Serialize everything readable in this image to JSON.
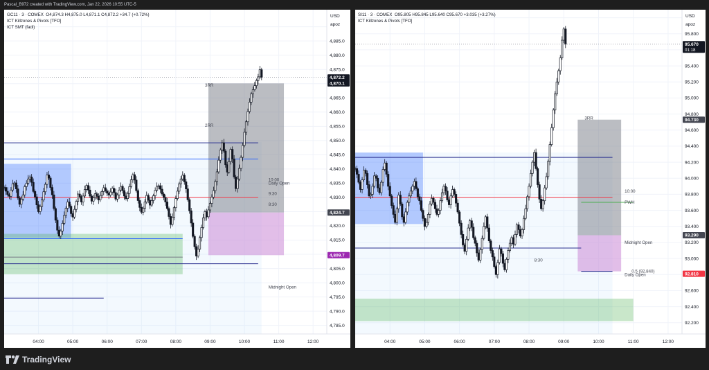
{
  "header": {
    "text": "Pascal_B972 created with TradingView.com, Jan 22, 2026 10:55 UTC-5"
  },
  "footer": {
    "brand": "TradingView"
  },
  "colors": {
    "up": "#26a69a",
    "down": "#ef5350",
    "candle": "#131722",
    "blue_box": "#2962ff",
    "green_box": "#4caf50",
    "purple_box": "#ce93d8",
    "gray_box": "#787b86",
    "red_line": "#f23645",
    "navy_line": "#2a2e8f",
    "price_tag": "#131722",
    "price_tag_red": "#f23645"
  },
  "chart_data": [
    {
      "type": "candlestick",
      "symbol_line": "GC11 · 3 · COMEX",
      "ohlc_text": "O4,874.3  H4,875.0  L4,871.1  C4,872.2  +34.7 (+0.72%)",
      "indicators": [
        "ICT Killzones & Pivots [TFO]",
        "ICT SMT (fadi)"
      ],
      "currency": "USD",
      "scale_mode": "apoz",
      "ylim": [
        4782,
        4896
      ],
      "y_ticks": [
        4785,
        4790,
        4795,
        4800,
        4805,
        4810,
        4815,
        4820,
        4825,
        4830,
        4835,
        4840,
        4845,
        4850,
        4855,
        4860,
        4865,
        4870,
        4875,
        4880,
        4885,
        4890
      ],
      "y_tick_labels": [
        "4,785.0",
        "4,790.0",
        "4,795.0",
        "4,800.0",
        "4,805.0",
        "4,810.0",
        "4,815.0",
        "4,820.0",
        "4,825.0",
        "4,830.0",
        "4,835.0",
        "4,840.0",
        "4,845.0",
        "4,850.0",
        "4,855.0",
        "4,860.0",
        "4,865.0",
        "4,870.0",
        "4,875.0",
        "4,880.0",
        "4,885.0",
        "4,890.0"
      ],
      "x_ticks": [
        "04:00",
        "05:00",
        "06:00",
        "07:00",
        "08:00",
        "09:00",
        "10:00",
        "11:00",
        "12:00"
      ],
      "price_tags": [
        {
          "value": 4872.2,
          "label": "4,872.2",
          "sub": "01:18",
          "color": "#131722"
        },
        {
          "value": 4870.1,
          "label": "4,870.1",
          "color": "#131722"
        },
        {
          "value": 4824.7,
          "label": "4,824.7",
          "color": "#434651"
        },
        {
          "value": 4809.7,
          "label": "4,809.7",
          "color": "#9c27b0"
        }
      ],
      "annotations": [
        {
          "text": "3RR",
          "hour": 8.85,
          "value": 4869.5
        },
        {
          "text": "2RR",
          "hour": 8.85,
          "value": 4855.3
        },
        {
          "text": "10:00",
          "hour": 10.7,
          "value": 4836.2
        },
        {
          "text": "Daily Open",
          "hour": 10.7,
          "value": 4835.0
        },
        {
          "text": "9:30",
          "hour": 10.7,
          "value": 4831.3
        },
        {
          "text": "8:30",
          "hour": 10.7,
          "value": 4827.5
        },
        {
          "text": "Midnight Open",
          "hour": 10.7,
          "value": 4798.5
        }
      ],
      "levels": [
        {
          "value": 4849.2,
          "from": 3.0,
          "to": 10.4,
          "color": "#2a2e8f"
        },
        {
          "value": 4843.5,
          "from": 3.0,
          "to": 10.4,
          "color": "#2962ff"
        },
        {
          "value": 4830.0,
          "from": 3.0,
          "to": 10.4,
          "color": "#f23645"
        },
        {
          "value": 4815.5,
          "from": 3.0,
          "to": 8.2,
          "color": "#2962ff"
        },
        {
          "value": 4809.0,
          "from": 3.0,
          "to": 8.2,
          "color": "#787b86"
        },
        {
          "value": 4806.7,
          "from": 3.0,
          "to": 10.4,
          "color": "#2a2e8f"
        },
        {
          "value": 4794.6,
          "from": 3.0,
          "to": 5.9,
          "color": "#2a2e8f"
        }
      ],
      "zones": [
        {
          "name": "asia",
          "from": 3.0,
          "to": 4.95,
          "low": 4815.8,
          "high": 4841.8,
          "color": "#2962ff"
        },
        {
          "name": "london",
          "from": 3.0,
          "to": 8.2,
          "low": 4803.0,
          "high": 4817.2,
          "color": "#4caf50"
        },
        {
          "name": "session",
          "from": 3.0,
          "to": 10.5,
          "low": 4782.0,
          "high": 4849.5,
          "color": "#bbdefb"
        },
        {
          "name": "target",
          "from": 8.95,
          "to": 11.15,
          "low": 4824.7,
          "high": 4870.1,
          "color": "#787b86"
        },
        {
          "name": "stop",
          "from": 8.95,
          "to": 11.15,
          "low": 4809.7,
          "high": 4824.7,
          "color": "#ce93d8"
        }
      ],
      "series": {
        "start_hour": 3.0,
        "step_hour": 0.05,
        "close": [
          4833.5,
          4832.2,
          4831.0,
          4830.4,
          4832.6,
          4834.8,
          4835.1,
          4833.0,
          4829.8,
          4827.6,
          4829.4,
          4830.9,
          4833.8,
          4835.0,
          4836.5,
          4837.2,
          4835.3,
          4832.1,
          4830.2,
          4827.4,
          4825.0,
          4826.8,
          4829.1,
          4832.0,
          4834.6,
          4837.9,
          4836.8,
          4833.5,
          4830.9,
          4826.1,
          4822.0,
          4818.5,
          4816.4,
          4818.2,
          4820.9,
          4823.7,
          4826.2,
          4828.4,
          4826.9,
          4824.3,
          4823.1,
          4825.8,
          4828.6,
          4831.2,
          4830.3,
          4828.4,
          4830.5,
          4832.8,
          4834.2,
          4832.6,
          4830.5,
          4828.7,
          4829.9,
          4831.3,
          4830.4,
          4829.1,
          4830.7,
          4832.1,
          4833.4,
          4832.3,
          4831.5,
          4830.8,
          4831.9,
          4833.2,
          4831.7,
          4829.4,
          4830.9,
          4832.6,
          4833.9,
          4832.4,
          4830.5,
          4829.6,
          4831.4,
          4833.8,
          4836.2,
          4838.0,
          4836.1,
          4832.4,
          4828.9,
          4826.5,
          4824.8,
          4826.2,
          4828.4,
          4830.7,
          4829.0,
          4827.3,
          4828.9,
          4830.6,
          4832.5,
          4833.9,
          4834.1,
          4832.9,
          4831.2,
          4830.0,
          4828.4,
          4826.1,
          4823.3,
          4820.5,
          4823.0,
          4826.4,
          4829.6,
          4832.2,
          4834.8,
          4836.5,
          4837.8,
          4835.5,
          4833.0,
          4829.2,
          4825.3,
          4821.0,
          4816.3,
          4812.7,
          4809.4,
          4811.8,
          4815.9,
          4819.4,
          4822.8,
          4825.0,
          4823.2,
          4825.6,
          4827.9,
          4830.1,
          4832.4,
          4835.6,
          4839.0,
          4843.1,
          4846.7,
          4849.2,
          4846.3,
          4841.5,
          4838.9,
          4842.6,
          4846.9,
          4843.5,
          4837.2,
          4833.1,
          4836.5,
          4840.2,
          4844.1,
          4848.3,
          4852.9,
          4856.6,
          4860.2,
          4863.5,
          4866.4,
          4867.9,
          4869.3,
          4871.1,
          4872.4,
          4874.9,
          4872.2
        ]
      }
    },
    {
      "type": "candlestick",
      "symbol_line": "SI11 · 3 · COMEX",
      "ohlc_text": "O95.805  H95.845  L95.640  C95.670  +3.035 (+3.27%)",
      "indicators": [
        "ICT Killzones & Pivots [TFO]"
      ],
      "currency": "USD",
      "scale_mode": "apoz",
      "ylim": [
        92.06,
        96.1
      ],
      "y_ticks": [
        92.2,
        92.4,
        92.6,
        92.8,
        93.0,
        93.2,
        93.4,
        93.6,
        93.8,
        94.0,
        94.2,
        94.4,
        94.6,
        94.8,
        95.0,
        95.2,
        95.4,
        95.6,
        95.8,
        96.0
      ],
      "y_tick_labels": [
        "92.200",
        "92.400",
        "92.600",
        "92.800",
        "93.000",
        "93.200",
        "93.400",
        "93.600",
        "93.800",
        "94.000",
        "94.200",
        "94.400",
        "94.600",
        "94.800",
        "95.000",
        "95.200",
        "95.400",
        "95.600",
        "95.800",
        "96.000"
      ],
      "x_ticks": [
        "04:00",
        "05:00",
        "06:00",
        "07:00",
        "08:00",
        "09:00",
        "10:00",
        "11:00",
        "12:00"
      ],
      "price_tags": [
        {
          "value": 95.67,
          "label": "95.670",
          "sub": "01:18",
          "color": "#131722"
        },
        {
          "value": 94.73,
          "label": "94.730",
          "color": "#434651"
        },
        {
          "value": 93.29,
          "label": "93.290",
          "color": "#434651"
        },
        {
          "value": 92.81,
          "label": "92.810",
          "color": "#f23645"
        }
      ],
      "annotations": [
        {
          "text": "3RR",
          "hour": 9.6,
          "value": 94.75
        },
        {
          "text": "10:00",
          "hour": 10.75,
          "value": 93.84
        },
        {
          "text": "PWH",
          "hour": 10.75,
          "value": 93.7
        },
        {
          "text": "Midnight Open",
          "hour": 10.75,
          "value": 93.2
        },
        {
          "text": "8:30",
          "hour": 8.15,
          "value": 92.98
        },
        {
          "text": "0.5 (92.840)",
          "hour": 10.95,
          "value": 92.84
        },
        {
          "text": "Daily Open",
          "hour": 10.75,
          "value": 92.8
        }
      ],
      "levels": [
        {
          "value": 94.26,
          "from": 3.0,
          "to": 10.4,
          "color": "#2a2e8f"
        },
        {
          "value": 93.76,
          "from": 3.0,
          "to": 10.4,
          "color": "#f23645"
        },
        {
          "value": 93.7,
          "from": 9.5,
          "to": 11.0,
          "color": "#4caf50"
        },
        {
          "value": 93.13,
          "from": 3.0,
          "to": 9.5,
          "color": "#2a2e8f"
        },
        {
          "value": 92.84,
          "from": 9.5,
          "to": 10.4,
          "color": "#2a2e8f"
        }
      ],
      "zones": [
        {
          "name": "asia",
          "from": 3.0,
          "to": 4.95,
          "low": 93.43,
          "high": 94.32,
          "color": "#2962ff"
        },
        {
          "name": "london",
          "from": 3.0,
          "to": 11.0,
          "low": 92.22,
          "high": 92.5,
          "color": "#4caf50"
        },
        {
          "name": "session",
          "from": 3.0,
          "to": 10.4,
          "low": 92.06,
          "high": 94.32,
          "color": "#bbdefb"
        },
        {
          "name": "target",
          "from": 9.4,
          "to": 10.65,
          "low": 93.29,
          "high": 94.73,
          "color": "#787b86"
        },
        {
          "name": "stop",
          "from": 9.4,
          "to": 10.65,
          "low": 92.84,
          "high": 93.29,
          "color": "#ce93d8"
        }
      ],
      "series": {
        "start_hour": 3.0,
        "step_hour": 0.05,
        "close": [
          94.12,
          94.05,
          93.95,
          93.86,
          93.98,
          94.1,
          94.06,
          93.92,
          93.78,
          93.8,
          93.9,
          94.03,
          94.0,
          93.88,
          93.82,
          93.95,
          94.11,
          94.19,
          94.05,
          93.9,
          93.78,
          93.66,
          93.55,
          93.45,
          93.62,
          93.79,
          93.68,
          93.52,
          93.45,
          93.58,
          93.7,
          93.78,
          93.84,
          93.9,
          93.96,
          93.87,
          93.77,
          93.72,
          93.6,
          93.5,
          93.4,
          93.45,
          93.55,
          93.68,
          93.75,
          93.7,
          93.62,
          93.55,
          93.6,
          93.72,
          93.82,
          93.9,
          93.84,
          93.73,
          93.67,
          93.78,
          93.86,
          93.8,
          93.69,
          93.58,
          93.44,
          93.3,
          93.17,
          93.09,
          93.24,
          93.38,
          93.47,
          93.39,
          93.26,
          93.19,
          93.07,
          92.98,
          93.11,
          93.25,
          93.4,
          93.52,
          93.38,
          93.22,
          93.1,
          93.02,
          92.9,
          92.8,
          92.95,
          93.12,
          93.06,
          92.94,
          92.86,
          92.99,
          93.1,
          93.19,
          93.26,
          93.18,
          93.3,
          93.42,
          93.36,
          93.28,
          93.36,
          93.5,
          93.62,
          93.77,
          93.9,
          94.06,
          94.2,
          94.32,
          94.12,
          93.92,
          93.74,
          93.62,
          93.72,
          93.88,
          94.02,
          94.21,
          94.42,
          94.63,
          94.85,
          95.05,
          95.2,
          95.34,
          95.5,
          95.72,
          95.86,
          95.67
        ]
      }
    }
  ]
}
